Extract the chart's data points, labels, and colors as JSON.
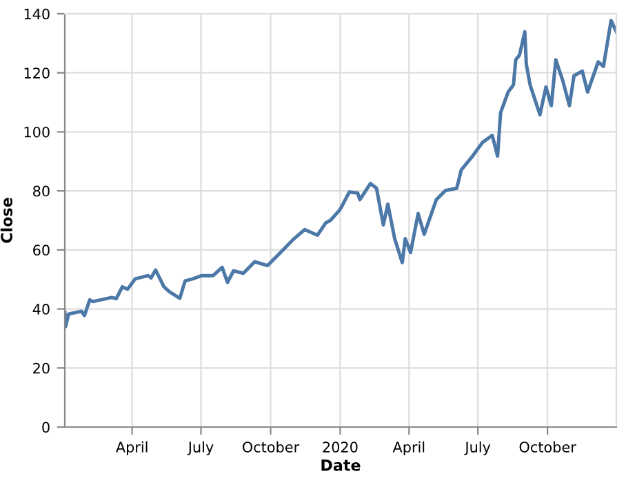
{
  "chart_data": {
    "type": "line",
    "xlabel": "Date",
    "ylabel": "Close",
    "xlim": [
      "2019-01-02",
      "2020-12-31"
    ],
    "ylim": [
      0,
      140
    ],
    "xticks": [
      {
        "value": "2019-04-01",
        "label": "April"
      },
      {
        "value": "2019-07-01",
        "label": "July"
      },
      {
        "value": "2019-10-01",
        "label": "October"
      },
      {
        "value": "2020-01-01",
        "label": "2020"
      },
      {
        "value": "2020-04-01",
        "label": "April"
      },
      {
        "value": "2020-07-01",
        "label": "July"
      },
      {
        "value": "2020-10-01",
        "label": "October"
      }
    ],
    "yticks": [
      0,
      20,
      40,
      60,
      80,
      100,
      120,
      140
    ],
    "grid": true,
    "line_style": "solid",
    "x": [
      "2019-01-02",
      "2019-01-03",
      "2019-01-07",
      "2019-01-24",
      "2019-01-28",
      "2019-02-04",
      "2019-02-08",
      "2019-03-05",
      "2019-03-11",
      "2019-03-19",
      "2019-03-26",
      "2019-04-05",
      "2019-04-22",
      "2019-04-26",
      "2019-05-02",
      "2019-05-13",
      "2019-05-20",
      "2019-06-03",
      "2019-06-10",
      "2019-06-20",
      "2019-07-02",
      "2019-07-17",
      "2019-07-29",
      "2019-08-05",
      "2019-08-13",
      "2019-08-26",
      "2019-09-10",
      "2019-09-27",
      "2019-10-14",
      "2019-11-01",
      "2019-11-15",
      "2019-12-02",
      "2019-12-13",
      "2019-12-19",
      "2019-12-31",
      "2020-01-03",
      "2020-01-13",
      "2020-01-24",
      "2020-01-27",
      "2020-02-10",
      "2020-02-18",
      "2020-02-27",
      "2020-03-04",
      "2020-03-13",
      "2020-03-23",
      "2020-03-27",
      "2020-04-03",
      "2020-04-13",
      "2020-04-21",
      "2020-05-07",
      "2020-05-19",
      "2020-06-03",
      "2020-06-09",
      "2020-06-24",
      "2020-07-07",
      "2020-07-20",
      "2020-07-27",
      "2020-07-31",
      "2020-08-10",
      "2020-08-17",
      "2020-08-20",
      "2020-08-25",
      "2020-09-01",
      "2020-09-03",
      "2020-09-08",
      "2020-09-21",
      "2020-09-29",
      "2020-10-06",
      "2020-10-12",
      "2020-10-21",
      "2020-10-30",
      "2020-11-05",
      "2020-11-16",
      "2020-11-23",
      "2020-12-07",
      "2020-12-14",
      "2020-12-24",
      "2020-12-31"
    ],
    "series": [
      {
        "color": "#4c78a8",
        "values": [
          38.9,
          34,
          38.3,
          39.2,
          37.8,
          43.1,
          42.5,
          43.9,
          43.5,
          47.5,
          46.7,
          50.2,
          51.3,
          50.5,
          53.2,
          47.5,
          45.9,
          43.6,
          49.5,
          50.2,
          51.3,
          51.3,
          54.1,
          49,
          52.9,
          52.1,
          56,
          54.7,
          59.1,
          63.8,
          66.9,
          65,
          69.2,
          70,
          73.4,
          74.7,
          79.6,
          79.3,
          77,
          82.5,
          80.9,
          68.5,
          75.5,
          63.8,
          55.7,
          63.8,
          59.1,
          72.3,
          65.3,
          77,
          80.1,
          80.9,
          87.1,
          91.8,
          96.4,
          98.8,
          91.8,
          106.5,
          113.5,
          115.9,
          124.4,
          126,
          133.9,
          122.9,
          115.9,
          105.8,
          115.2,
          108.9,
          124.4,
          117.5,
          108.9,
          119,
          120.6,
          113.5,
          123.7,
          122.2,
          137.7,
          133.9
        ]
      }
    ]
  }
}
